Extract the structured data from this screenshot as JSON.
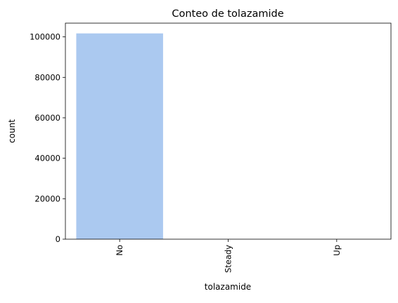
{
  "chart_data": {
    "type": "bar",
    "title": "Conteo de tolazamide",
    "xlabel": "tolazamide",
    "ylabel": "count",
    "categories": [
      "No",
      "Steady",
      "Up"
    ],
    "values": [
      101727,
      38,
      1
    ],
    "ylim": [
      0,
      106800
    ],
    "yticks": [
      0,
      20000,
      40000,
      60000,
      80000,
      100000
    ],
    "grid": false,
    "legend": "none",
    "bar_color": "#abc9f0",
    "x_tick_rotation": "vertical"
  }
}
